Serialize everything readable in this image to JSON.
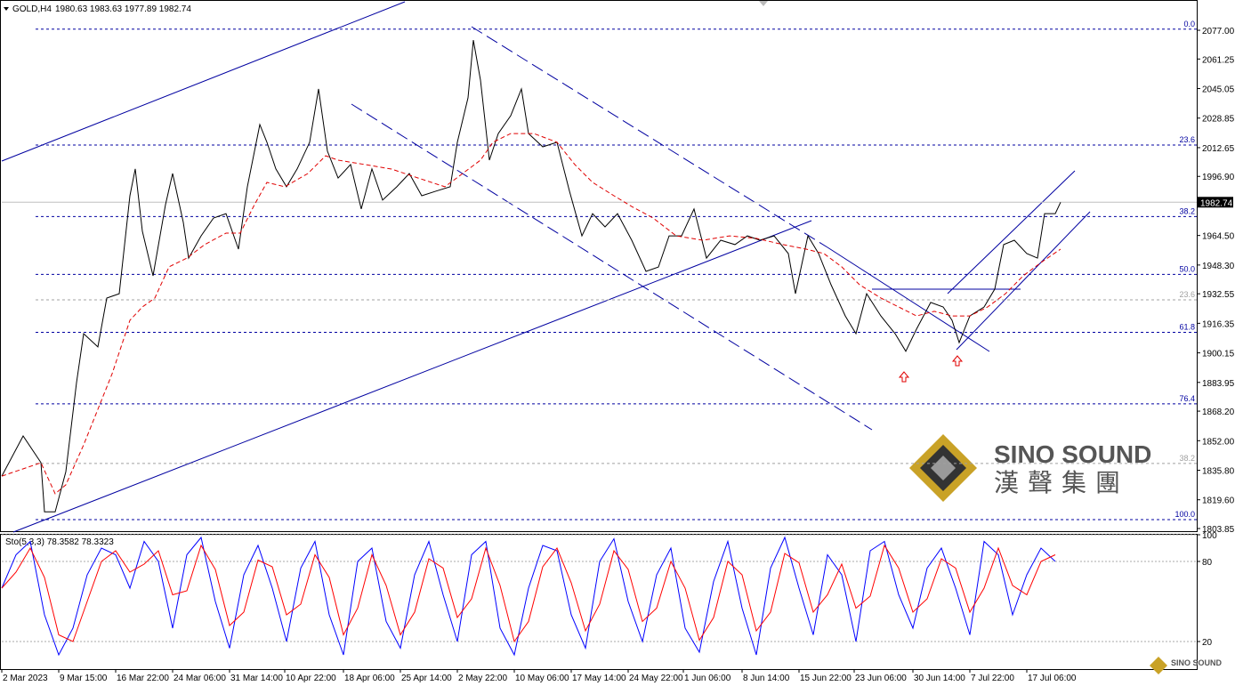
{
  "chart_data": [
    {
      "type": "line",
      "title": "GOLD,H4",
      "ohlc_label": "1980.63 1983.63 1977.89 1982.74",
      "xlim": [
        0,
        671.5
      ],
      "xticks": [
        {
          "value": 0,
          "label": "2 Mar 2023"
        },
        {
          "value": 32,
          "label": "9 Mar 15:00"
        },
        {
          "value": 64,
          "label": "16 Mar 22:00"
        },
        {
          "value": 96,
          "label": "24 Mar 06:00"
        },
        {
          "value": 128,
          "label": "31 Mar 14:00"
        },
        {
          "value": 159,
          "label": "10 Apr 22:00"
        },
        {
          "value": 192,
          "label": "18 Apr 06:00"
        },
        {
          "value": 224,
          "label": "25 Apr 14:00"
        },
        {
          "value": 256,
          "label": "2 May 22:00"
        },
        {
          "value": 288,
          "label": "10 May 06:00"
        },
        {
          "value": 320,
          "label": "17 May 14:00"
        },
        {
          "value": 352,
          "label": "24 May 22:00"
        },
        {
          "value": 383,
          "label": "1 Jun 06:00"
        },
        {
          "value": 416,
          "label": "8 Jun 14:00"
        },
        {
          "value": 448,
          "label": "15 Jun 22:00"
        },
        {
          "value": 479,
          "label": "23 Jun 06:00"
        },
        {
          "value": 512,
          "label": "30 Jun 14:00"
        },
        {
          "value": 544,
          "label": "7 Jul 22:00"
        },
        {
          "value": 576,
          "label": "17 Jul 06:00"
        }
      ],
      "ylim": [
        1801.9,
        2093.6
      ],
      "yticks": [
        {
          "value": 2077,
          "label": "2077.00"
        },
        2061.25,
        2045.05,
        2028.85,
        2012.65,
        {
          "value": 1996.9,
          "label": "1996.90"
        },
        {
          "value": 1964.5,
          "label": "1964.50"
        },
        {
          "value": 1948.3,
          "label": "1948.30"
        },
        1932.55,
        1916.35,
        1900.15,
        1883.95,
        {
          "value": 1868.2,
          "label": "1868.20"
        },
        {
          "value": 1852,
          "label": "1852.00"
        },
        {
          "value": 1835.8,
          "label": "1835.80"
        },
        {
          "value": 1819.6,
          "label": "1819.60"
        },
        1803.85
      ],
      "series": [
        {
          "color": "#000000",
          "x": [
            0,
            12,
            22,
            24,
            30,
            36,
            42,
            46,
            54,
            59,
            66,
            72,
            75,
            79,
            85,
            92,
            96,
            102,
            105,
            112,
            119,
            126,
            133,
            138,
            145,
            149,
            154,
            160,
            166,
            173,
            178,
            183,
            189,
            196,
            202,
            208,
            214,
            222,
            229,
            236,
            244,
            252,
            256,
            262,
            265,
            269,
            274,
            279,
            286,
            292,
            296,
            304,
            312,
            319,
            326,
            332,
            339,
            346,
            354,
            362,
            369,
            375,
            382,
            389,
            396,
            404,
            412,
            419,
            426,
            434,
            442,
            446,
            453,
            459,
            466,
            474,
            480,
            486,
            494,
            502,
            508,
            514,
            522,
            529,
            534,
            538,
            544,
            552,
            558,
            563,
            569,
            576,
            582,
            586,
            592,
            595
          ],
          "values": [
            1832.6,
            1854.6,
            1840,
            1813,
            1813,
            1835,
            1883.8,
            1910.7,
            1903.4,
            1930.2,
            1932.6,
            1986.3,
            2001,
            1966.8,
            1942.4,
            1981.4,
            1998.5,
            1971.7,
            1952.1,
            1964.3,
            1974.1,
            1976.5,
            1957,
            1991.2,
            2025.3,
            2015.6,
            2001,
            1991.2,
            2001,
            2015.6,
            2044.8,
            2010.7,
            1996,
            2003.4,
            1979,
            2001,
            1983.9,
            1991.2,
            1998.5,
            1986.3,
            1988.8,
            1991.2,
            2015.6,
            2040,
            2071.6,
            2049.7,
            2005.8,
            2020.4,
            2030.2,
            2044.8,
            2020.4,
            2013.1,
            2015.6,
            1988.8,
            1964.3,
            1976.5,
            1969.2,
            1976.5,
            1961.9,
            1944.8,
            1947.2,
            1964.3,
            1964.3,
            1979,
            1952.1,
            1961.9,
            1959.5,
            1964.3,
            1961.9,
            1964.3,
            1954.6,
            1932.6,
            1964.3,
            1954.6,
            1937.5,
            1920.4,
            1910.7,
            1932.6,
            1920.4,
            1910.7,
            1901,
            1913.1,
            1927.8,
            1925.3,
            1918,
            1905.8,
            1920.4,
            1925.3,
            1935.1,
            1959.5,
            1961.9,
            1954.6,
            1952.1,
            1976.5,
            1976.5,
            1982.74
          ]
        },
        {
          "color": "#e00000",
          "dash": true,
          "x": [
            0,
            22,
            30,
            36,
            46,
            54,
            62,
            72,
            79,
            86,
            94,
            104,
            114,
            126,
            134,
            142,
            149,
            159,
            172,
            182,
            189,
            204,
            219,
            234,
            249,
            259,
            269,
            276,
            286,
            299,
            312,
            322,
            332,
            344,
            354,
            366,
            379,
            394,
            409,
            424,
            439,
            452,
            462,
            472,
            482,
            494,
            504,
            514,
            524,
            534,
            544,
            554,
            564,
            574,
            584,
            595
          ],
          "values": [
            1832.6,
            1839.9,
            1822.9,
            1827.8,
            1849.7,
            1869.2,
            1888.7,
            1918,
            1925.3,
            1930.2,
            1947.3,
            1952.1,
            1959.5,
            1965.8,
            1965.8,
            1981.4,
            1993.6,
            1991.2,
            1998.5,
            2008.2,
            2005.8,
            2003.4,
            2000.9,
            1996,
            1991.2,
            1998.5,
            2005.8,
            2015.6,
            2020.4,
            2020.4,
            2015.6,
            2003.4,
            1993.6,
            1986.3,
            1980.4,
            1974.1,
            1964.3,
            1961.9,
            1964.3,
            1962.9,
            1959.5,
            1957,
            1954.6,
            1947.3,
            1937.5,
            1930.2,
            1925.3,
            1920.4,
            1922.9,
            1920.4,
            1920.4,
            1925.3,
            1932.6,
            1942.4,
            1949.7,
            1957
          ]
        }
      ],
      "last_price": 1982.74,
      "levels": [
        {
          "label": "0.0",
          "value": 2077.6,
          "color": "#0000a0"
        },
        {
          "label": "23.6",
          "value": 2014.1,
          "color": "#0000a0"
        },
        {
          "label": "38.2",
          "value": 1974.9,
          "color": "#0000a0"
        },
        {
          "label": "50.0",
          "value": 1943.2,
          "color": "#0000a0"
        },
        {
          "label": "61.8",
          "value": 1911.4,
          "color": "#0000a0"
        },
        {
          "label": "76.4",
          "value": 1872.2,
          "color": "#0000a0"
        },
        {
          "label": "100.0",
          "value": 1808.7,
          "color": "#0000a0"
        },
        {
          "label": "23.6",
          "value": 1929.2,
          "color": "#a0a0a0"
        },
        {
          "label": "38.2",
          "value": 1839.5,
          "color": "#a0a0a0"
        }
      ]
    },
    {
      "type": "line",
      "title": "Sto(5,3,3) 78.3582 78.3323",
      "xlim": [
        0,
        671.5
      ],
      "ylim": [
        0,
        100
      ],
      "yticks": [
        100,
        80,
        20
      ],
      "series": [
        {
          "color": "#0000ff",
          "x": [
            0,
            8,
            16,
            24,
            32,
            40,
            48,
            56,
            64,
            72,
            80,
            88,
            96,
            104,
            112,
            120,
            128,
            136,
            144,
            152,
            160,
            168,
            176,
            184,
            192,
            200,
            208,
            216,
            224,
            232,
            240,
            248,
            256,
            264,
            272,
            280,
            288,
            296,
            304,
            312,
            320,
            328,
            336,
            344,
            352,
            360,
            368,
            376,
            384,
            392,
            400,
            408,
            416,
            424,
            432,
            440,
            448,
            456,
            464,
            472,
            480,
            488,
            496,
            504,
            512,
            520,
            528,
            536,
            544,
            552,
            560,
            568,
            576,
            584,
            592
          ],
          "values": [
            60,
            85,
            95,
            40,
            10,
            30,
            70,
            90,
            85,
            60,
            95,
            80,
            30,
            85,
            98,
            50,
            15,
            70,
            92,
            60,
            20,
            75,
            95,
            40,
            10,
            80,
            90,
            35,
            15,
            70,
            95,
            55,
            20,
            85,
            95,
            30,
            10,
            60,
            92,
            88,
            40,
            15,
            80,
            97,
            50,
            20,
            70,
            90,
            30,
            12,
            65,
            95,
            45,
            10,
            75,
            98,
            60,
            25,
            85,
            70,
            20,
            88,
            95,
            55,
            30,
            75,
            90,
            60,
            25,
            95,
            85,
            40,
            70,
            90,
            80
          ]
        },
        {
          "color": "#ff0000",
          "x": [
            0,
            8,
            16,
            24,
            32,
            40,
            48,
            56,
            64,
            72,
            80,
            88,
            96,
            104,
            112,
            120,
            128,
            136,
            144,
            152,
            160,
            168,
            176,
            184,
            192,
            200,
            208,
            216,
            224,
            232,
            240,
            248,
            256,
            264,
            272,
            280,
            288,
            296,
            304,
            312,
            320,
            328,
            336,
            344,
            352,
            360,
            368,
            376,
            384,
            392,
            400,
            408,
            416,
            424,
            432,
            440,
            448,
            456,
            464,
            472,
            480,
            488,
            496,
            504,
            512,
            520,
            528,
            536,
            544,
            552,
            560,
            568,
            576,
            584,
            592
          ],
          "values": [
            60,
            72,
            90,
            68,
            25,
            20,
            50,
            80,
            88,
            72,
            78,
            88,
            55,
            58,
            92,
            74,
            32,
            42,
            81,
            76,
            40,
            48,
            85,
            68,
            25,
            45,
            85,
            62,
            25,
            42,
            82,
            75,
            38,
            52,
            90,
            62,
            20,
            35,
            76,
            90,
            64,
            28,
            48,
            88,
            74,
            35,
            45,
            80,
            60,
            21,
            38,
            80,
            70,
            28,
            42,
            86,
            79,
            42,
            55,
            78,
            45,
            54,
            92,
            75,
            42,
            52,
            82,
            75,
            42,
            60,
            90,
            62,
            55,
            80,
            85
          ]
        }
      ]
    }
  ],
  "logo": {
    "name": "SINO SOUND",
    "chinese": "漢聲集團"
  }
}
